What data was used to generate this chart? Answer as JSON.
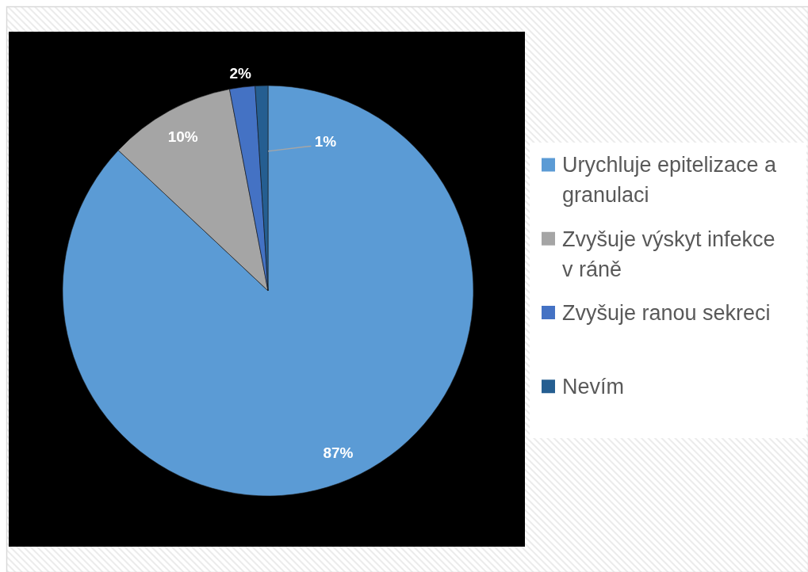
{
  "chart_data": {
    "type": "pie",
    "categories": [
      "Urychluje epitelizace a granulaci",
      "Zvyšuje výskyt infekce v ráně",
      "Zvyšuje ranou sekreci",
      "Nevím"
    ],
    "values": [
      87,
      10,
      2,
      1
    ],
    "colors": [
      "#5b9bd5",
      "#a5a5a5",
      "#4472c4",
      "#255e91"
    ],
    "value_labels": [
      "87%",
      "10%",
      "2%",
      "1%"
    ],
    "legend": "right"
  }
}
